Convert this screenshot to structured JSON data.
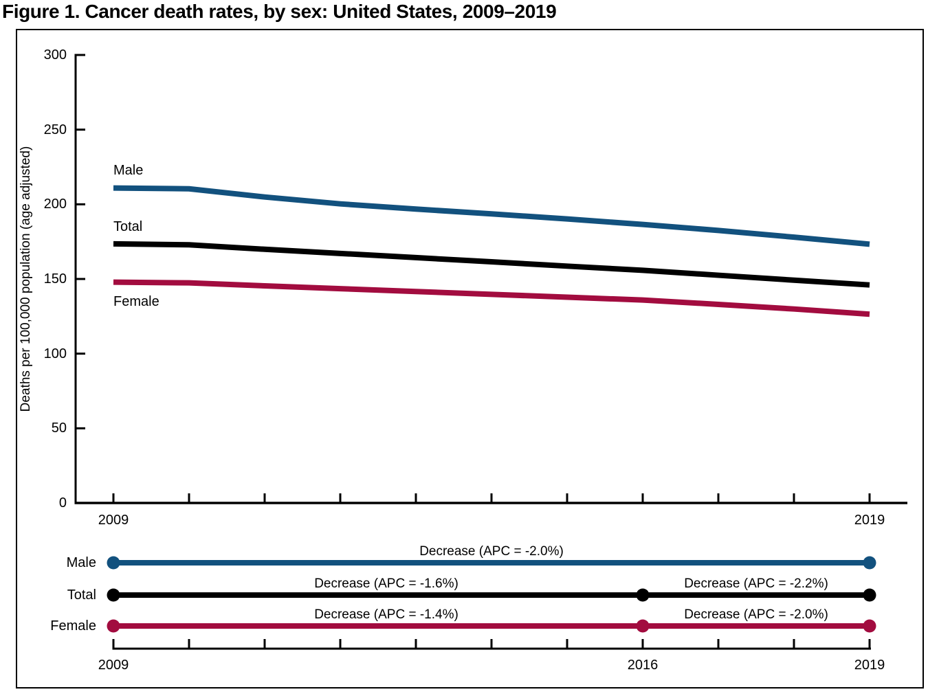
{
  "figure": {
    "title": "Figure 1. Cancer death rates, by sex: United States, 2009–2019"
  },
  "colors": {
    "male": "#12517E",
    "total": "#000000",
    "female": "#A20C3F",
    "axis": "#000000"
  },
  "chart_data": [
    {
      "type": "line",
      "title": "Cancer death rates, by sex: United States, 2009–2019",
      "ylabel": "Deaths per 100,000 population (age adjusted)",
      "xlabel": "",
      "x": [
        2009,
        2010,
        2011,
        2012,
        2013,
        2014,
        2015,
        2016,
        2017,
        2018,
        2019
      ],
      "x_tick_labels_shown": [
        "2009",
        "2019"
      ],
      "y_ticks": [
        0,
        50,
        100,
        150,
        200,
        250,
        300
      ],
      "ylim": [
        0,
        300
      ],
      "grid": false,
      "legend": "inline-labels",
      "series": [
        {
          "name": "Male",
          "color_key": "male",
          "values": [
            210.9,
            210.4,
            204.9,
            200.3,
            196.8,
            193.6,
            190.2,
            186.5,
            182.5,
            178.0,
            173.3
          ]
        },
        {
          "name": "Total",
          "color_key": "total",
          "values": [
            173.5,
            172.9,
            169.9,
            167.1,
            164.3,
            161.5,
            158.6,
            155.8,
            152.5,
            149.2,
            146.0
          ]
        },
        {
          "name": "Female",
          "color_key": "female",
          "values": [
            147.9,
            147.4,
            145.4,
            143.5,
            141.6,
            139.7,
            137.8,
            135.9,
            133.0,
            129.9,
            126.4
          ]
        }
      ]
    },
    {
      "type": "line",
      "subtype": "apc-trend-timeline",
      "x": [
        2009,
        2010,
        2011,
        2012,
        2013,
        2014,
        2015,
        2016,
        2017,
        2018,
        2019
      ],
      "x_tick_labels_shown": [
        "2009",
        "2016",
        "2019"
      ],
      "rows": [
        {
          "name": "Male",
          "color_key": "male",
          "segments": [
            {
              "start": 2009,
              "end": 2019,
              "label": "Decrease (APC = -2.0%)"
            }
          ]
        },
        {
          "name": "Total",
          "color_key": "total",
          "segments": [
            {
              "start": 2009,
              "end": 2016,
              "label": "Decrease (APC = -1.6%)"
            },
            {
              "start": 2016,
              "end": 2019,
              "label": "Decrease (APC = -2.2%)"
            }
          ]
        },
        {
          "name": "Female",
          "color_key": "female",
          "segments": [
            {
              "start": 2009,
              "end": 2016,
              "label": "Decrease (APC = -1.4%)"
            },
            {
              "start": 2016,
              "end": 2019,
              "label": "Decrease (APC = -2.0%)"
            }
          ]
        }
      ]
    }
  ]
}
